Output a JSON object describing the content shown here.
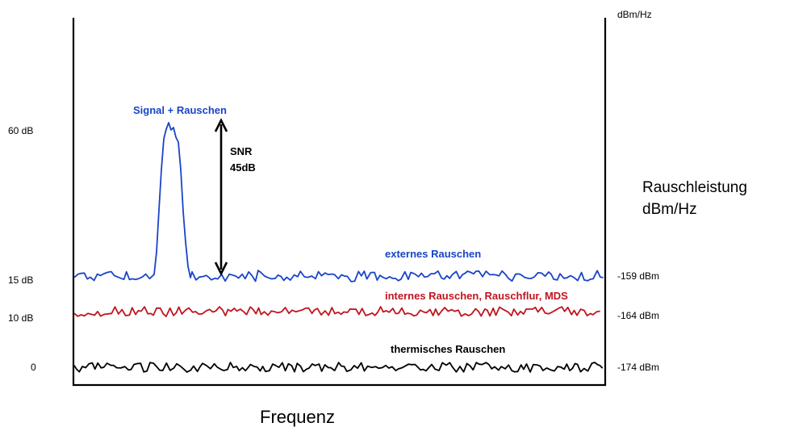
{
  "colors": {
    "external": "#1a44c8",
    "internal": "#c0151f",
    "thermal": "#000000",
    "axis": "#000000"
  },
  "left_axis": {
    "ticks": [
      "60 dB",
      "15 dB",
      "10 dB",
      "0"
    ]
  },
  "right_axis": {
    "unit": "dBm/Hz",
    "title_line1": "Rauschleistung",
    "title_line2": "dBm/Hz",
    "ticks": [
      "-159 dBm",
      "-164 dBm",
      "-174 dBm"
    ]
  },
  "x_axis": {
    "label": "Frequenz"
  },
  "curves": {
    "signal_label": "Signal + Rauschen",
    "external_label": "externes Rauschen",
    "internal_label": "internes Rauschen, Rauschflur, MDS",
    "thermal_label": "thermisches Rauschen"
  },
  "snr": {
    "line1": "SNR",
    "line2": "45dB"
  }
}
